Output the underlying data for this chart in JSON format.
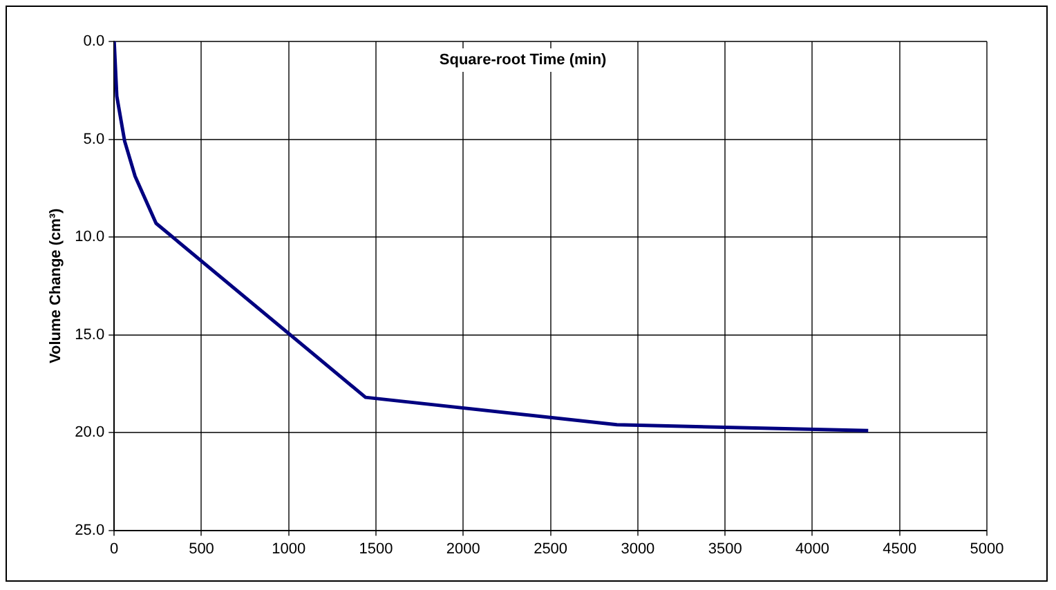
{
  "chart_data": {
    "type": "line",
    "xlabel": "Square-root Time (min)",
    "ylabel": "Volume Change (cm³)",
    "x": [
      0,
      15,
      60,
      120,
      240,
      1440,
      2880,
      4320
    ],
    "series": [
      {
        "color": "#000080",
        "values": [
          0,
          2.8,
          5.1,
          6.9,
          9.3,
          18.2,
          19.6,
          19.9
        ]
      }
    ],
    "xlim": [
      0,
      5000
    ],
    "xticks": [
      0,
      500,
      1000,
      1500,
      2000,
      2500,
      3000,
      3500,
      4000,
      4500,
      5000
    ],
    "ylim": [
      25,
      0
    ],
    "yticks": [
      {
        "value": 0,
        "label": "0.0"
      },
      {
        "value": 5,
        "label": "5.0"
      },
      {
        "value": 10,
        "label": "10.0"
      },
      {
        "value": 15,
        "label": "15.0"
      },
      {
        "value": 20,
        "label": "20.0"
      },
      {
        "value": 25,
        "label": "25.0"
      }
    ],
    "grid": true,
    "legend": false,
    "marker": "none",
    "line_style": "solid"
  }
}
